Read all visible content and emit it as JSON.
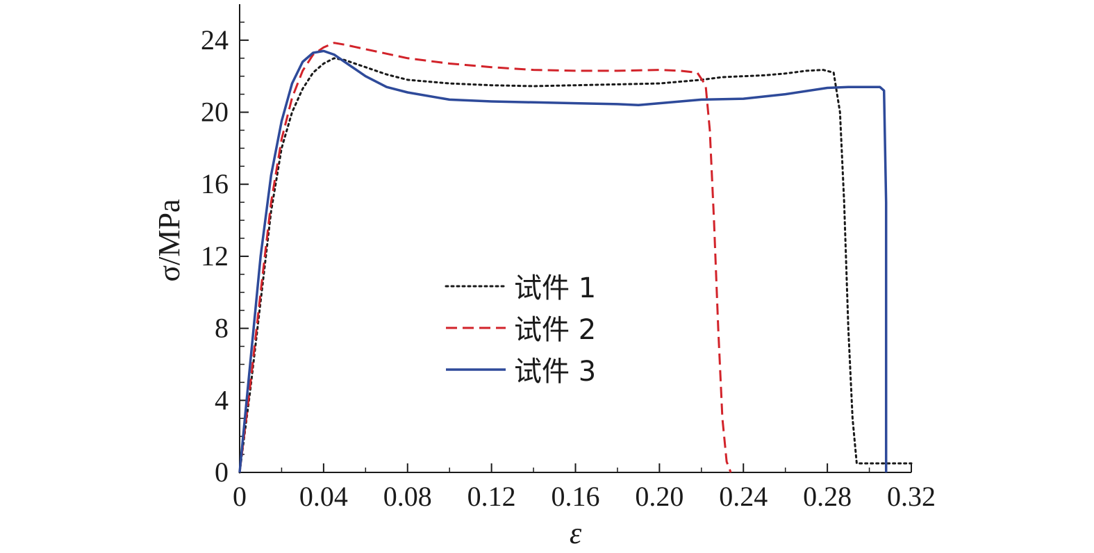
{
  "chart_data": {
    "type": "line",
    "xlabel": "ε",
    "ylabel": "σ/MPa",
    "xlim": [
      0,
      0.32
    ],
    "ylim": [
      0,
      26
    ],
    "xticks": [
      0,
      0.04,
      0.08,
      0.12,
      0.16,
      0.2,
      0.24,
      0.28,
      0.32
    ],
    "xtick_labels": [
      "0",
      "0.04",
      "0.08",
      "0.12",
      "0.16",
      "0.20",
      "0.24",
      "0.28",
      "0.32"
    ],
    "yticks": [
      0,
      4,
      8,
      12,
      16,
      20,
      24
    ],
    "ytick_labels": [
      "0",
      "4",
      "8",
      "12",
      "16",
      "20",
      "24"
    ],
    "grid": false,
    "legend_position": "center",
    "series": [
      {
        "name": "试件 1",
        "color": "#1a1a1a",
        "style": "dotted",
        "x": [
          0,
          0.005,
          0.01,
          0.015,
          0.02,
          0.025,
          0.03,
          0.035,
          0.04,
          0.045,
          0.05,
          0.06,
          0.07,
          0.08,
          0.1,
          0.12,
          0.14,
          0.16,
          0.18,
          0.2,
          0.21,
          0.22,
          0.23,
          0.24,
          0.25,
          0.26,
          0.27,
          0.278,
          0.283,
          0.286,
          0.288,
          0.29,
          0.292,
          0.294,
          0.3,
          0.31,
          0.32
        ],
        "y": [
          0,
          4.5,
          9.5,
          14.5,
          18.0,
          20.0,
          21.3,
          22.2,
          22.7,
          23.0,
          22.9,
          22.5,
          22.1,
          21.8,
          21.6,
          21.5,
          21.45,
          21.5,
          21.55,
          21.6,
          21.7,
          21.8,
          21.95,
          22.0,
          22.05,
          22.15,
          22.3,
          22.35,
          22.2,
          20.0,
          15.0,
          8.0,
          3.0,
          0.5,
          0.5,
          0.5,
          0.5
        ]
      },
      {
        "name": "试件 2",
        "color": "#d2232a",
        "style": "dashed",
        "x": [
          0,
          0.005,
          0.01,
          0.015,
          0.02,
          0.025,
          0.03,
          0.035,
          0.04,
          0.045,
          0.05,
          0.06,
          0.08,
          0.1,
          0.12,
          0.14,
          0.16,
          0.18,
          0.2,
          0.21,
          0.218,
          0.222,
          0.224,
          0.226,
          0.228,
          0.23,
          0.232,
          0.234
        ],
        "y": [
          0,
          4.8,
          10.0,
          15.0,
          18.5,
          20.8,
          22.3,
          23.2,
          23.6,
          23.85,
          23.75,
          23.5,
          23.0,
          22.7,
          22.5,
          22.35,
          22.3,
          22.3,
          22.35,
          22.3,
          22.2,
          21.5,
          19.0,
          14.0,
          8.0,
          3.0,
          0.6,
          0
        ]
      },
      {
        "name": "试件 3",
        "color": "#2e4a9a",
        "style": "solid",
        "x": [
          0,
          0.005,
          0.01,
          0.015,
          0.02,
          0.025,
          0.03,
          0.035,
          0.04,
          0.045,
          0.05,
          0.06,
          0.07,
          0.08,
          0.1,
          0.12,
          0.14,
          0.16,
          0.18,
          0.19,
          0.2,
          0.22,
          0.24,
          0.26,
          0.28,
          0.29,
          0.3,
          0.305,
          0.307,
          0.308,
          0.308
        ],
        "y": [
          0,
          6.0,
          12.0,
          16.5,
          19.5,
          21.6,
          22.8,
          23.3,
          23.4,
          23.2,
          22.8,
          22.0,
          21.4,
          21.1,
          20.7,
          20.6,
          20.55,
          20.5,
          20.45,
          20.4,
          20.5,
          20.7,
          20.75,
          21.0,
          21.35,
          21.4,
          21.4,
          21.4,
          21.2,
          15.0,
          0
        ]
      }
    ]
  }
}
